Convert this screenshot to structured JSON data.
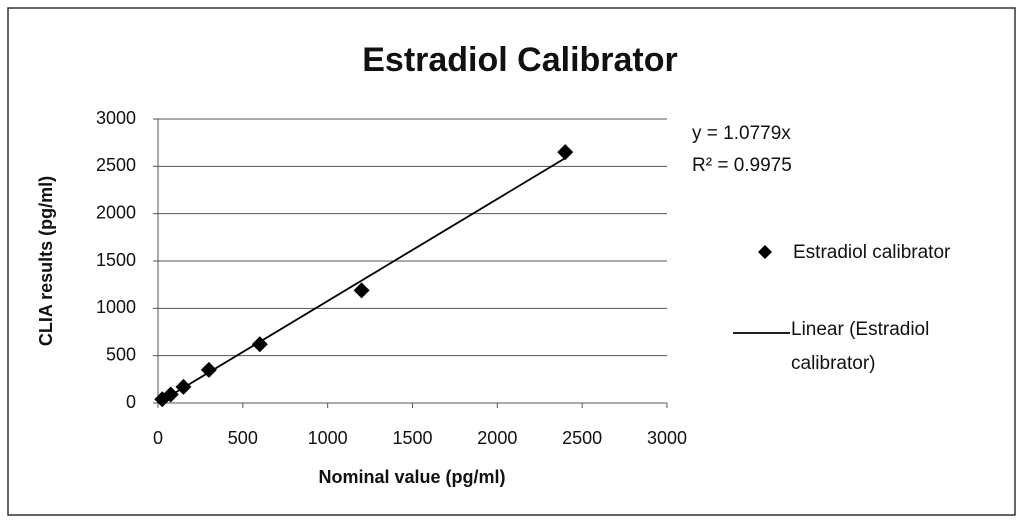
{
  "chart_data": {
    "type": "scatter",
    "title": "Estradiol Calibrator",
    "x_label": "Nominal value (pg/ml)",
    "y_label": "CLIA results (pg/ml)",
    "series": [
      {
        "name": "Estradiol calibrator",
        "color": "#000000",
        "marker": "diamond",
        "x": [
          25,
          75,
          150,
          300,
          600,
          1200,
          2400
        ],
        "values": [
          40,
          90,
          170,
          350,
          620,
          1190,
          2650
        ]
      }
    ],
    "trendline": {
      "name": "Linear (Estradiol calibrator)",
      "equation": "y = 1.0779x",
      "r_squared_label": "R² = 0.9975",
      "slope": 1.0779,
      "color": "#000000"
    },
    "xlim": [
      0,
      3000
    ],
    "xticks": [
      0,
      500,
      1000,
      1500,
      2000,
      2500,
      3000
    ],
    "ylim": [
      0,
      3000
    ],
    "yticks": [
      0,
      500,
      1000,
      1500,
      2000,
      2500,
      3000
    ],
    "grid": true,
    "legend": "right"
  }
}
